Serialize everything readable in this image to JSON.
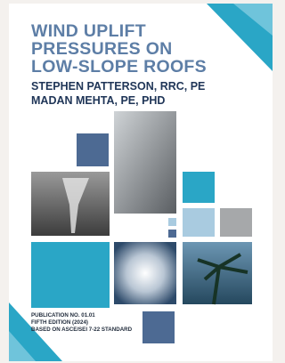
{
  "cover": {
    "title": [
      "WIND UPLIFT",
      "PRESSURES ON",
      "LOW-SLOPE ROOFS"
    ],
    "authors": [
      "STEPHEN PATTERSON, RRC, PE",
      "MADAN MEHTA, PE, PHD"
    ],
    "publication": [
      "PUBLICATION NO. 01.01",
      "FIFTH EDITION (2024)",
      "BASED ON ASCE/SEI 7-22 STANDARD"
    ]
  }
}
